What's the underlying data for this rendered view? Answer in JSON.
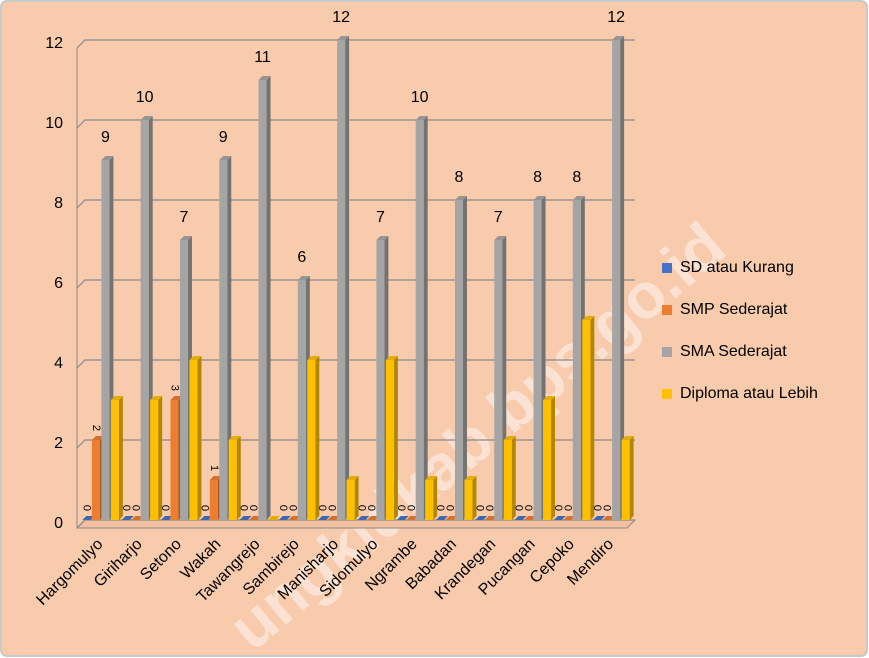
{
  "chart_data": {
    "type": "bar3d",
    "categories": [
      "Hargomulyo",
      "Giriharjo",
      "Setono",
      "Wakah",
      "Tawangrejo",
      "Sambirejo",
      "Manisharjo",
      "Sidomulyo",
      "Ngrambe",
      "Babadan",
      "Krandegan",
      "Pucangan",
      "Cepoko",
      "Mendiro"
    ],
    "series": [
      {
        "name": "SD atau Kurang",
        "color": "#4472c4",
        "label_style": "rotated",
        "values": [
          0,
          0,
          0,
          0,
          0,
          0,
          0,
          0,
          0,
          0,
          0,
          0,
          0,
          0
        ]
      },
      {
        "name": "SMP Sederajat",
        "color": "#ed7d31",
        "label_style": "rotated",
        "values": [
          2,
          0,
          3,
          1,
          0,
          0,
          0,
          0,
          0,
          0,
          0,
          0,
          0,
          0
        ]
      },
      {
        "name": "SMA Sederajat",
        "color": "#a5a5a5",
        "label_style": "above",
        "values": [
          9,
          10,
          7,
          9,
          11,
          6,
          12,
          7,
          10,
          8,
          7,
          8,
          8,
          12
        ]
      },
      {
        "name": "Diploma atau Lebih",
        "color": "#ffc000",
        "label_style": "none",
        "values": [
          3,
          3,
          4,
          2,
          0,
          4,
          1,
          4,
          1,
          1,
          2,
          3,
          5,
          2
        ]
      }
    ],
    "ylim": [
      0,
      12
    ],
    "yticks": [
      0,
      2,
      4,
      6,
      8,
      10,
      12
    ],
    "grid": true,
    "legend": "right",
    "watermark": "ungkidkab.bps.go.id"
  }
}
